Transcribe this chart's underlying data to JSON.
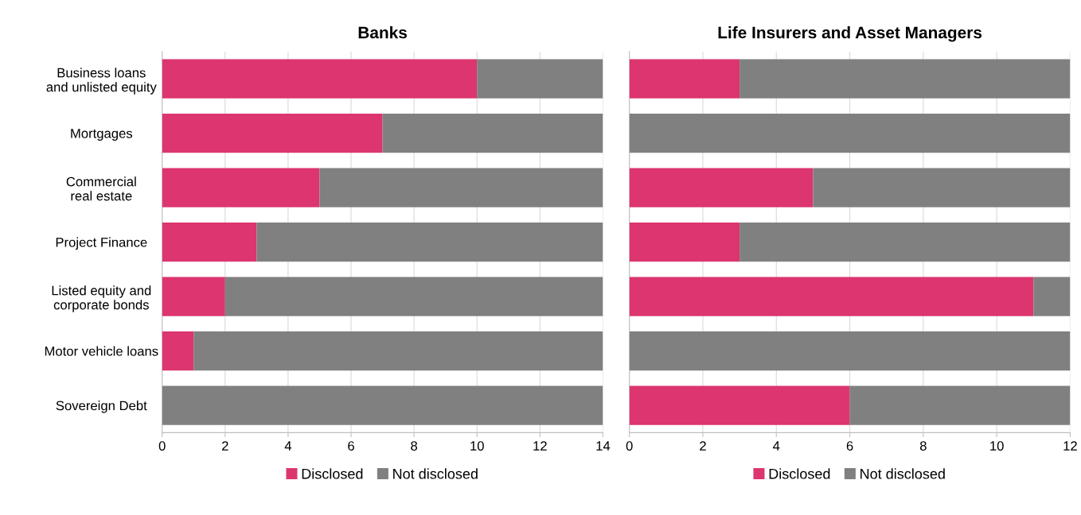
{
  "chart_data": [
    {
      "type": "bar",
      "title": "Banks",
      "orientation": "horizontal",
      "stacked": true,
      "categories": [
        "Business loans\nand unlisted equity",
        "Mortgages",
        "Commercial\nreal estate",
        "Project Finance",
        "Listed equity and\ncorporate bonds",
        "Motor vehicle loans",
        "Sovereign Debt"
      ],
      "series": [
        {
          "name": "Disclosed",
          "color": "#dc3570",
          "values": [
            10,
            7,
            5,
            3,
            2,
            1,
            0
          ]
        },
        {
          "name": "Not disclosed",
          "color": "#808080",
          "values": [
            4,
            7,
            9,
            11,
            12,
            13,
            14
          ]
        }
      ],
      "xlim": [
        0,
        14
      ],
      "xticks": [
        0,
        2,
        4,
        6,
        8,
        10,
        12,
        14
      ],
      "grid": "x",
      "legend": "bottom"
    },
    {
      "type": "bar",
      "title": "Life Insurers and Asset Managers",
      "orientation": "horizontal",
      "stacked": true,
      "categories": [
        null,
        null,
        null,
        null,
        null,
        null,
        null
      ],
      "series": [
        {
          "name": "Disclosed",
          "color": "#dc3570",
          "values": [
            3,
            0,
            5,
            3,
            11,
            0,
            6
          ]
        },
        {
          "name": "Not disclosed",
          "color": "#808080",
          "values": [
            9,
            12,
            7,
            9,
            1,
            12,
            6
          ]
        }
      ],
      "xlim": [
        0,
        12
      ],
      "xticks": [
        0,
        2,
        4,
        6,
        8,
        10,
        12
      ],
      "grid": "x",
      "legend": "bottom",
      "tick_labels": "x"
    }
  ]
}
